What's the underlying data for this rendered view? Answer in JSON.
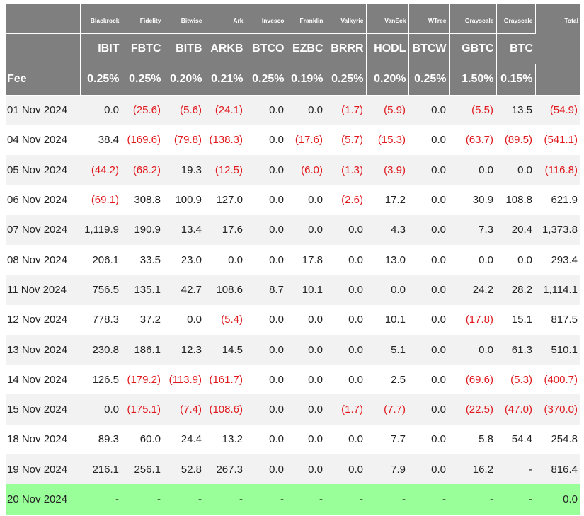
{
  "table": {
    "issuers": [
      "Blackrock",
      "Fidelity",
      "Bitwise",
      "Ark",
      "Invesco",
      "Franklin",
      "Valkyrie",
      "VanEck",
      "WTree",
      "Grayscale",
      "Grayscale"
    ],
    "total_label": "Total",
    "tickers": [
      "IBIT",
      "FBTC",
      "BITB",
      "ARKB",
      "BTCO",
      "EZBC",
      "BRRR",
      "HODL",
      "BTCW",
      "GBTC",
      "BTC"
    ],
    "fee_label": "Fee",
    "fees": [
      "0.25%",
      "0.25%",
      "0.20%",
      "0.21%",
      "0.25%",
      "0.19%",
      "0.25%",
      "0.20%",
      "0.25%",
      "1.50%",
      "0.15%"
    ],
    "rows": [
      [
        "01 Nov 2024",
        "0.0",
        "(25.6)",
        "(5.6)",
        "(24.1)",
        "0.0",
        "0.0",
        "(1.7)",
        "(5.9)",
        "0.0",
        "(5.5)",
        "13.5",
        "(54.9)"
      ],
      [
        "04 Nov 2024",
        "38.4",
        "(169.6)",
        "(79.8)",
        "(138.3)",
        "0.0",
        "(17.6)",
        "(5.7)",
        "(15.3)",
        "0.0",
        "(63.7)",
        "(89.5)",
        "(541.1)"
      ],
      [
        "05 Nov 2024",
        "(44.2)",
        "(68.2)",
        "19.3",
        "(12.5)",
        "0.0",
        "(6.0)",
        "(1.3)",
        "(3.9)",
        "0.0",
        "0.0",
        "0.0",
        "(116.8)"
      ],
      [
        "06 Nov 2024",
        "(69.1)",
        "308.8",
        "100.9",
        "127.0",
        "0.0",
        "0.0",
        "(2.6)",
        "17.2",
        "0.0",
        "30.9",
        "108.8",
        "621.9"
      ],
      [
        "07 Nov 2024",
        "1,119.9",
        "190.9",
        "13.4",
        "17.6",
        "0.0",
        "0.0",
        "0.0",
        "4.3",
        "0.0",
        "7.3",
        "20.4",
        "1,373.8"
      ],
      [
        "08 Nov 2024",
        "206.1",
        "33.5",
        "23.0",
        "0.0",
        "0.0",
        "17.8",
        "0.0",
        "13.0",
        "0.0",
        "0.0",
        "0.0",
        "293.4"
      ],
      [
        "11 Nov 2024",
        "756.5",
        "135.1",
        "42.7",
        "108.6",
        "8.7",
        "10.1",
        "0.0",
        "0.0",
        "0.0",
        "24.2",
        "28.2",
        "1,114.1"
      ],
      [
        "12 Nov 2024",
        "778.3",
        "37.2",
        "0.0",
        "(5.4)",
        "0.0",
        "0.0",
        "0.0",
        "10.1",
        "0.0",
        "(17.8)",
        "15.1",
        "817.5"
      ],
      [
        "13 Nov 2024",
        "230.8",
        "186.1",
        "12.3",
        "14.5",
        "0.0",
        "0.0",
        "0.0",
        "5.1",
        "0.0",
        "0.0",
        "61.3",
        "510.1"
      ],
      [
        "14 Nov 2024",
        "126.5",
        "(179.2)",
        "(113.9)",
        "(161.7)",
        "0.0",
        "0.0",
        "0.0",
        "2.5",
        "0.0",
        "(69.6)",
        "(5.3)",
        "(400.7)"
      ],
      [
        "15 Nov 2024",
        "0.0",
        "(175.1)",
        "(7.4)",
        "(108.6)",
        "0.0",
        "0.0",
        "(1.7)",
        "(7.7)",
        "0.0",
        "(22.5)",
        "(47.0)",
        "(370.0)"
      ],
      [
        "18 Nov 2024",
        "89.3",
        "60.0",
        "24.4",
        "13.2",
        "0.0",
        "0.0",
        "0.0",
        "7.7",
        "0.0",
        "5.8",
        "54.4",
        "254.8"
      ],
      [
        "19 Nov 2024",
        "216.1",
        "256.1",
        "52.8",
        "267.3",
        "0.0",
        "0.0",
        "0.0",
        "7.9",
        "0.0",
        "16.2",
        "-",
        "816.4"
      ],
      [
        "20 Nov 2024",
        "-",
        "-",
        "-",
        "-",
        "-",
        "-",
        "-",
        "-",
        "-",
        "-",
        "-",
        "0.0"
      ]
    ]
  }
}
